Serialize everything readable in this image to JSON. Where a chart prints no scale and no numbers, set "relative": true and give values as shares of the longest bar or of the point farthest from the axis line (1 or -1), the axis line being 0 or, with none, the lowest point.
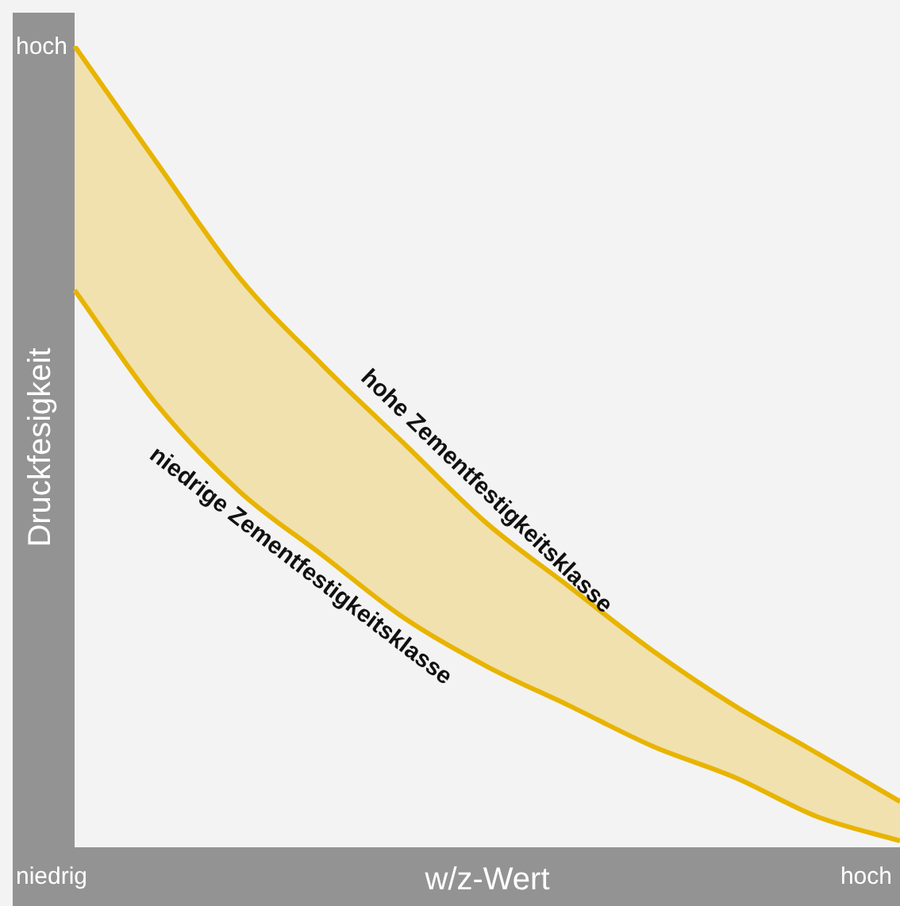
{
  "chart_data": {
    "type": "line",
    "relative": true,
    "xlabel": "w/z-Wert",
    "ylabel": "Druckfesigkeit",
    "annotations": [
      "hoch",
      "niedrig",
      "hoch"
    ],
    "categories": [
      null,
      null,
      null,
      null,
      null,
      null,
      null,
      null,
      null,
      null,
      null
    ],
    "series": [
      {
        "name": "hohe Zementfestigkeitsklasse",
        "color": "#e8b400",
        "values": [
          1,
          0.854,
          0.711,
          0.603,
          0.504,
          0.405,
          0.326,
          0.247,
          0.178,
          0.119,
          0.059
        ],
        "upper": [
          1,
          0.854,
          0.711,
          0.603,
          0.504,
          0.405,
          0.326,
          0.247,
          0.178,
          0.119,
          0.059
        ],
        "lower": [
          0.696,
          0.553,
          0.445,
          0.366,
          0.287,
          0.227,
          0.178,
          0.128,
          0.089,
          0.04,
          0.01
        ]
      },
      {
        "name": "niedrige Zementfestigkeitsklasse",
        "color": "#e8b400",
        "values": [
          0.696,
          0.553,
          0.445,
          0.366,
          0.287,
          0.227,
          0.178,
          0.128,
          0.089,
          0.04,
          0.01
        ]
      }
    ],
    "grid": false,
    "legend": false,
    "marker": "none",
    "line_style": "solid"
  }
}
